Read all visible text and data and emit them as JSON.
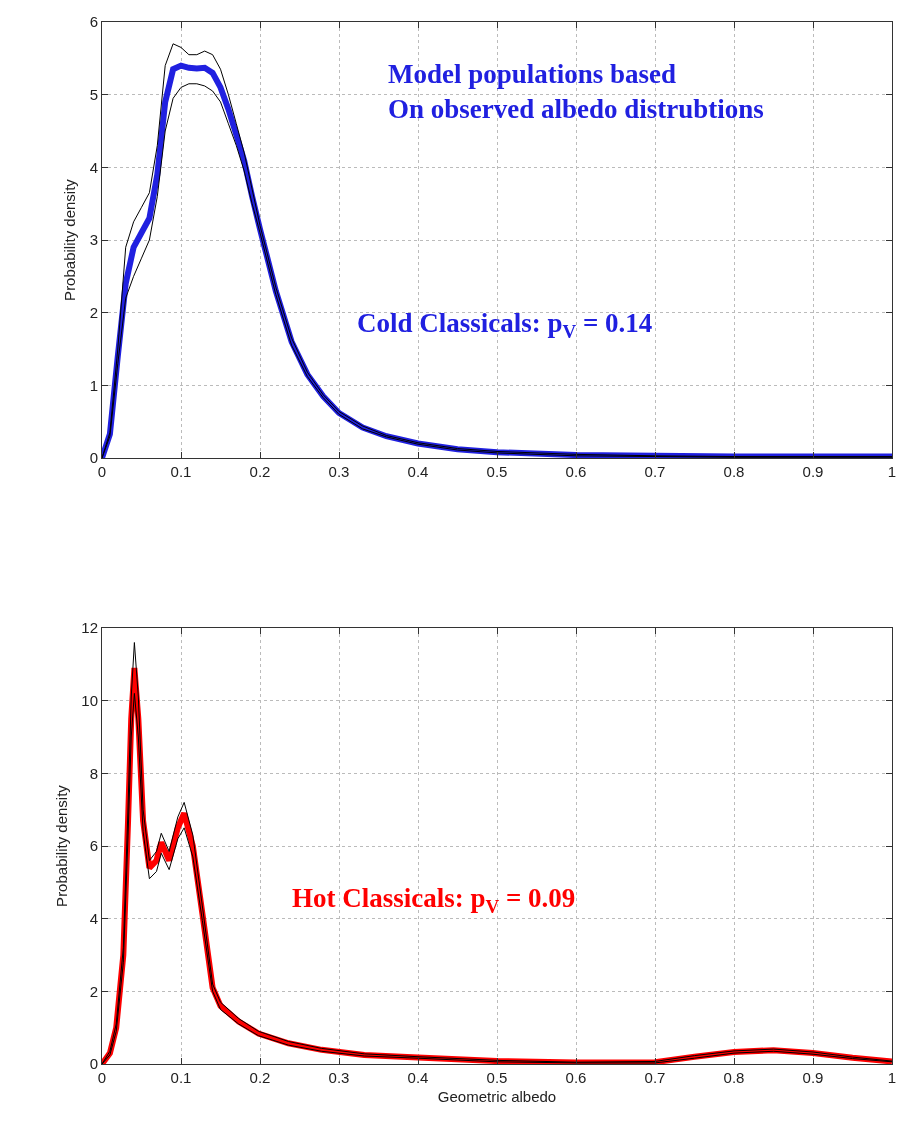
{
  "chart_data": [
    {
      "type": "line",
      "ylabel": "Probability density",
      "xlim": [
        0,
        1
      ],
      "ylim": [
        0,
        6
      ],
      "xticks": [
        0,
        0.1,
        0.2,
        0.3,
        0.4,
        0.5,
        0.6,
        0.7,
        0.8,
        0.9,
        1
      ],
      "yticks": [
        0,
        1,
        2,
        3,
        4,
        5,
        6
      ],
      "grid": true,
      "marker": "none",
      "line_style": "solid",
      "annotations": [
        "Model populations based\nOn observed albedo distrubtions",
        "Cold Classicals: p$_{V}$ = 0.14"
      ],
      "x": [
        0,
        0.01,
        0.02,
        0.03,
        0.04,
        0.05,
        0.06,
        0.07,
        0.08,
        0.09,
        0.1,
        0.11,
        0.12,
        0.13,
        0.14,
        0.15,
        0.16,
        0.17,
        0.18,
        0.19,
        0.2,
        0.22,
        0.24,
        0.26,
        0.28,
        0.3,
        0.33,
        0.36,
        0.4,
        0.45,
        0.5,
        0.6,
        0.7,
        0.8,
        0.9,
        1
      ],
      "series": [
        {
          "color": "#2020e0",
          "values": [
            0,
            0.33,
            1.4,
            2.4,
            2.9,
            3.1,
            3.3,
            3.9,
            4.9,
            5.35,
            5.4,
            5.37,
            5.36,
            5.37,
            5.3,
            5.1,
            4.8,
            4.45,
            4.09,
            3.6,
            3.15,
            2.3,
            1.6,
            1.15,
            0.85,
            0.62,
            0.42,
            0.3,
            0.2,
            0.12,
            0.08,
            0.04,
            0.03,
            0.02,
            0.02,
            0.02
          ]
        },
        {
          "color": "#000000",
          "values": [
            0,
            0.35,
            1.5,
            2.9,
            3.25,
            3.45,
            3.65,
            4.3,
            5.4,
            5.7,
            5.65,
            5.55,
            5.55,
            5.6,
            5.55,
            5.35,
            5.0,
            4.6,
            4.2,
            3.7,
            3.2,
            2.35,
            1.65,
            1.18,
            0.87,
            0.64,
            0.44,
            0.31,
            0.21,
            0.13,
            0.09,
            0.05,
            0.03,
            0.02,
            0.02,
            0.02
          ]
        },
        {
          "color": "#000000",
          "values": [
            0,
            0.3,
            1.3,
            2.2,
            2.5,
            2.75,
            3.0,
            3.6,
            4.5,
            4.95,
            5.1,
            5.15,
            5.15,
            5.12,
            5.05,
            4.9,
            4.6,
            4.3,
            3.95,
            3.5,
            3.1,
            2.25,
            1.55,
            1.12,
            0.83,
            0.6,
            0.4,
            0.29,
            0.19,
            0.11,
            0.07,
            0.03,
            0.02,
            0.01,
            0.01,
            0.01
          ]
        }
      ]
    },
    {
      "type": "line",
      "xlabel": "Geometric albedo",
      "ylabel": "Probability density",
      "xlim": [
        0,
        1
      ],
      "ylim": [
        0,
        12
      ],
      "xticks": [
        0,
        0.1,
        0.2,
        0.3,
        0.4,
        0.5,
        0.6,
        0.7,
        0.8,
        0.9,
        1
      ],
      "yticks": [
        0,
        2,
        4,
        6,
        8,
        10,
        12
      ],
      "grid": true,
      "marker": "none",
      "line_style": "solid",
      "annotations": [
        "Hot Classicals: p$_{V}$ = 0.09"
      ],
      "x": [
        0,
        0.01,
        0.018,
        0.027,
        0.033,
        0.037,
        0.041,
        0.046,
        0.052,
        0.06,
        0.069,
        0.075,
        0.085,
        0.096,
        0.104,
        0.115,
        0.127,
        0.14,
        0.15,
        0.173,
        0.198,
        0.236,
        0.278,
        0.332,
        0.4,
        0.5,
        0.6,
        0.7,
        0.75,
        0.8,
        0.85,
        0.9,
        0.95,
        1
      ],
      "series": [
        {
          "color": "#ff0000",
          "values": [
            0,
            0.3,
            1.0,
            3.0,
            6.7,
            9.5,
            10.9,
            9.5,
            6.7,
            5.4,
            5.6,
            6.1,
            5.6,
            6.5,
            6.9,
            6.0,
            4.15,
            2.1,
            1.6,
            1.17,
            0.84,
            0.57,
            0.39,
            0.25,
            0.18,
            0.08,
            0.04,
            0.05,
            0.2,
            0.33,
            0.38,
            0.3,
            0.17,
            0.07
          ]
        },
        {
          "color": "#000000",
          "values": [
            0,
            0.35,
            1.1,
            3.2,
            7.1,
            10.1,
            11.6,
            10.1,
            7.0,
            5.6,
            5.85,
            6.35,
            5.85,
            6.8,
            7.2,
            6.3,
            4.35,
            2.2,
            1.7,
            1.25,
            0.9,
            0.62,
            0.43,
            0.28,
            0.2,
            0.1,
            0.05,
            0.07,
            0.23,
            0.36,
            0.41,
            0.33,
            0.19,
            0.08
          ]
        },
        {
          "color": "#000000",
          "values": [
            0,
            0.25,
            0.9,
            2.8,
            6.3,
            9.0,
            10.2,
            9.0,
            6.4,
            5.1,
            5.3,
            5.8,
            5.35,
            6.2,
            6.5,
            5.7,
            3.95,
            2.0,
            1.5,
            1.1,
            0.78,
            0.52,
            0.35,
            0.22,
            0.16,
            0.06,
            0.03,
            0.03,
            0.16,
            0.3,
            0.35,
            0.27,
            0.15,
            0.06
          ]
        }
      ]
    }
  ]
}
